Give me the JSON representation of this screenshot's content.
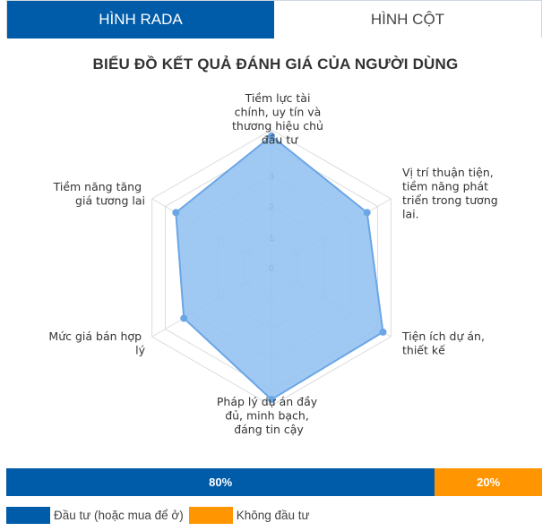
{
  "tabs": [
    {
      "label": "HÌNH RADA",
      "active": true
    },
    {
      "label": "HÌNH CỘT",
      "active": false
    }
  ],
  "colors": {
    "accent": "#005ba8",
    "fill": "#92c2f0",
    "stroke": "#6aa6e6",
    "orange": "#ff9500",
    "grid": "#dcdcdc"
  },
  "chart_data": {
    "type": "radar",
    "title": "BIỂU ĐỒ KẾT QUẢ ĐÁNH GIÁ CỦA NGƯỜI DÙNG",
    "categories": [
      "Tiềm lực tài chính, uy tín và thương hiệu chủ đầu tư",
      "Vị trí thuận tiện, tiềm năng phát triển trong tương lai.",
      "Tiện ích dự án, thiết kế",
      "Pháp lý dự án đầy đủ, minh bạch, đáng tin cậy",
      "Mức giá bán hợp lý",
      "Tiềm năng tăng giá tương lai"
    ],
    "category_lines": [
      [
        "Tiềm lực tài",
        "chính, uy tín và",
        "thương hiệu chủ",
        "đầu tư"
      ],
      [
        "Vị trí thuận tiện,",
        "tiềm năng phát",
        "triển trong tương",
        "lai."
      ],
      [
        "Tiện ích dự án,",
        "thiết kế"
      ],
      [
        "Pháp lý dự án đầy",
        "đủ, minh bạch,",
        "đáng tin cậy"
      ],
      [
        "Mức giá bán hợp",
        "lý"
      ],
      [
        "Tiềm năng tăng",
        "giá tương lai"
      ]
    ],
    "values": [
      4.3,
      3.6,
      4.2,
      4.3,
      3.3,
      3.6
    ],
    "rmax": 4.5,
    "ticks": [
      "0",
      "1",
      "2",
      "3"
    ],
    "grid": true
  },
  "summary_bar": {
    "segments": [
      {
        "label": "80%",
        "value": 80,
        "color": "#005ba8"
      },
      {
        "label": "20%",
        "value": 20,
        "color": "#ff9500"
      }
    ]
  },
  "legend": [
    {
      "label": "Đầu tư (hoặc mua để ở)",
      "color": "#005ba8"
    },
    {
      "label": "Không đầu tư",
      "color": "#ff9500"
    }
  ]
}
